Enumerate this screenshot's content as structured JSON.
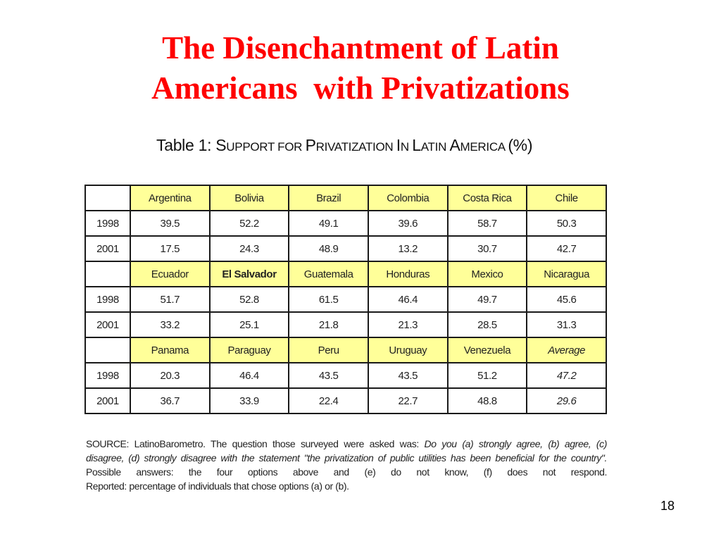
{
  "title": {
    "line1": "The Disenchantment of Latin",
    "line2": "Americans  with Privatizations"
  },
  "table": {
    "caption": "Table 1:  Support for Privatization In Latin America (%)",
    "caption_parts": {
      "label": "Table 1:  ",
      "s1": "S",
      "w1": "UPPORT ",
      "s2": "",
      "w2": "FOR ",
      "s3": "P",
      "w3": "RIVATIZATION ",
      "s4": "I",
      "w4": "N ",
      "s5": "L",
      "w5": "ATIN ",
      "s6": "A",
      "w6": "MERICA ",
      "tail": "(%)"
    },
    "blocks": [
      {
        "countries": [
          "Argentina",
          "Bolivia",
          "Brazil",
          "Colombia",
          "Costa Rica",
          "Chile"
        ],
        "rows": [
          {
            "year": "1998",
            "values": [
              "39.5",
              "52.2",
              "49.1",
              "39.6",
              "58.7",
              "50.3"
            ]
          },
          {
            "year": "2001",
            "values": [
              "17.5",
              "24.3",
              "48.9",
              "13.2",
              "30.7",
              "42.7"
            ]
          }
        ]
      },
      {
        "countries": [
          "Ecuador",
          "El Salvador",
          "Guatemala",
          "Honduras",
          "Mexico",
          "Nicaragua"
        ],
        "rows": [
          {
            "year": "1998",
            "values": [
              "51.7",
              "52.8",
              "61.5",
              "46.4",
              "49.7",
              "45.6"
            ]
          },
          {
            "year": "2001",
            "values": [
              "33.2",
              "25.1",
              "21.8",
              "21.3",
              "28.5",
              "31.3"
            ]
          }
        ]
      },
      {
        "countries": [
          "Panama",
          "Paraguay",
          "Peru",
          "Uruguay",
          "Venezuela",
          "Average"
        ],
        "rows": [
          {
            "year": "1998",
            "values": [
              "20.3",
              "46.4",
              "43.5",
              "43.5",
              "51.2",
              "47.2"
            ]
          },
          {
            "year": "2001",
            "values": [
              "36.7",
              "33.9",
              "22.4",
              "22.7",
              "48.8",
              "29.6"
            ]
          }
        ]
      }
    ]
  },
  "source": {
    "line1_a": "SOURCE: LatinoBarometro. The question those surveyed were asked was: ",
    "line1_b": "Do you (a) strongly agree, (b) agree, (c)",
    "line2": "disagree, (d) strongly disagree with the statement \"the privatization of public utilities has been beneficial for the country\".",
    "line3": "Possible answers: the four options above and (e) do not know, (f) does not respond.",
    "line4": "Reported: percentage of individuals that chose options (a) or (b)."
  },
  "page_number": "18",
  "colors": {
    "title": "#ff0000",
    "header_fill": "#ffff99",
    "border": "#1a1a1a"
  }
}
